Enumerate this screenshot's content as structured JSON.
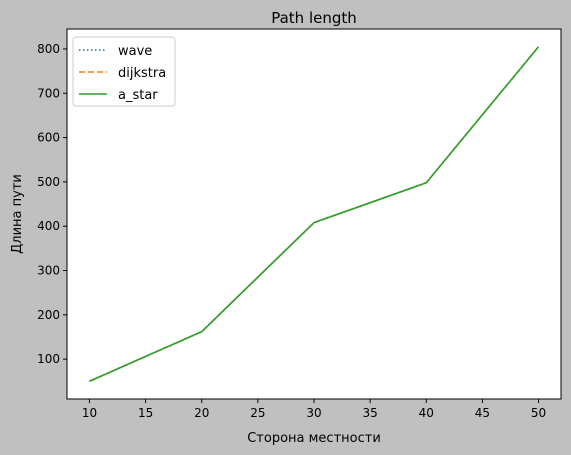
{
  "figure_background": "#c0c0c0",
  "chart_data": {
    "type": "line",
    "title": "Path length",
    "xlabel": "Сторона местности",
    "ylabel": "Длина пути",
    "x": [
      10,
      20,
      30,
      40,
      50
    ],
    "xlim": [
      8,
      52
    ],
    "ylim": [
      10,
      845
    ],
    "xticks": [
      "10",
      "15",
      "20",
      "25",
      "30",
      "35",
      "40",
      "45",
      "50"
    ],
    "yticks": [
      "100",
      "200",
      "300",
      "400",
      "500",
      "600",
      "700",
      "800"
    ],
    "grid": false,
    "legend_position": "top-left",
    "series": [
      {
        "name": "wave",
        "values": [
          50,
          162,
          408,
          498,
          805
        ],
        "color": "#1f77b4",
        "style": "dotted"
      },
      {
        "name": "dijkstra",
        "values": [
          50,
          162,
          408,
          498,
          805
        ],
        "color": "#ff7f0e",
        "style": "dashed"
      },
      {
        "name": "a_star",
        "values": [
          50,
          162,
          408,
          498,
          805
        ],
        "color": "#2ca02c",
        "style": "solid"
      }
    ]
  }
}
